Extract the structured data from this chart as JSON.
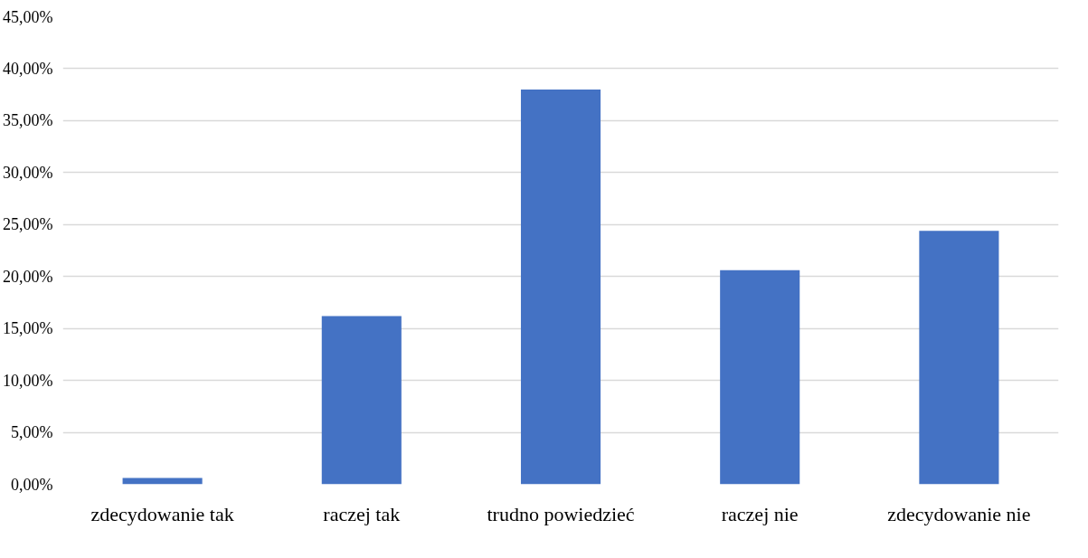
{
  "chart_data": {
    "type": "bar",
    "categories": [
      "zdecydowanie tak",
      "raczej tak",
      "trudno powiedzieć",
      "raczej nie",
      "zdecydowanie nie"
    ],
    "values": [
      0.6,
      16.2,
      38.0,
      20.6,
      24.4
    ],
    "color": "#4472c4",
    "ylim": [
      0,
      45
    ],
    "yticks": [
      {
        "value": 0,
        "label": "0,00%"
      },
      {
        "value": 5,
        "label": "5,00%"
      },
      {
        "value": 10,
        "label": "10,00%"
      },
      {
        "value": 15,
        "label": "15,00%"
      },
      {
        "value": 20,
        "label": "20,00%"
      },
      {
        "value": 25,
        "label": "25,00%"
      },
      {
        "value": 30,
        "label": "30,00%"
      },
      {
        "value": 35,
        "label": "35,00%"
      },
      {
        "value": 40,
        "label": "40,00%"
      },
      {
        "value": 45,
        "label": "45,00%"
      }
    ],
    "grid": "y"
  }
}
